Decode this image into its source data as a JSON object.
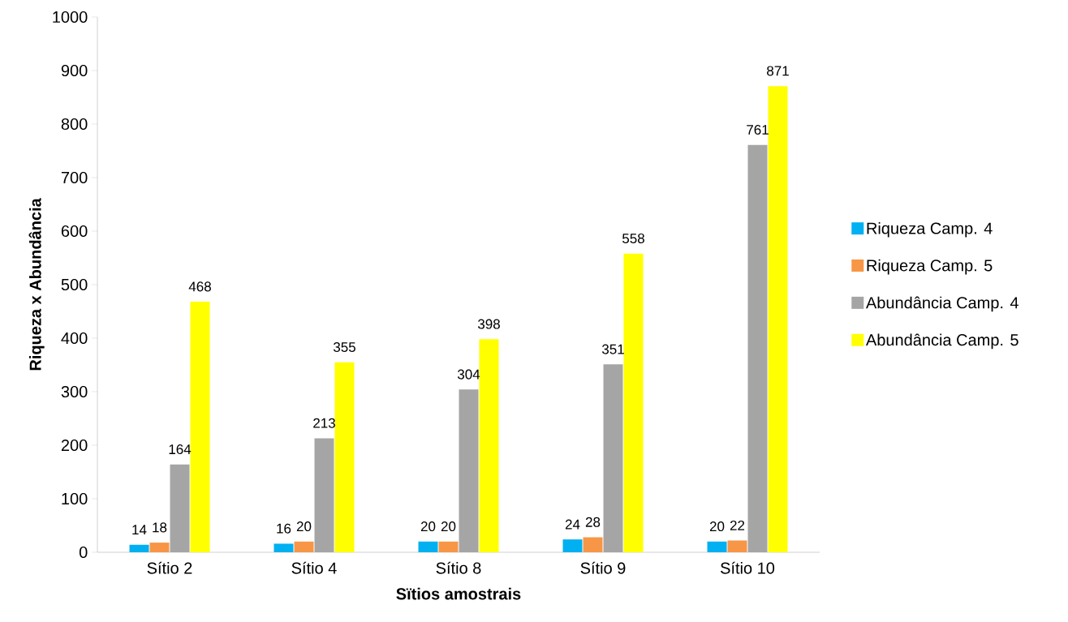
{
  "chart_data": {
    "type": "bar",
    "xlabel": "Sïtios amostrais",
    "ylabel": "Riqueza x Abundância",
    "categories": [
      "Sítio 2",
      "Sítio 4",
      "Sítio 8",
      "Sítio 9",
      "Sítio 10"
    ],
    "series": [
      {
        "name": "Riqueza Camp. 4",
        "color": "#00b0f0",
        "values": [
          14,
          16,
          20,
          24,
          20
        ]
      },
      {
        "name": "Riqueza Camp. 5",
        "color": "#f79646",
        "values": [
          18,
          20,
          20,
          28,
          22
        ]
      },
      {
        "name": "Abundância Camp. 4",
        "color": "#a5a5a5",
        "values": [
          164,
          213,
          304,
          351,
          761
        ]
      },
      {
        "name": "Abundância Camp. 5",
        "color": "#ffff00",
        "values": [
          468,
          355,
          398,
          558,
          871
        ]
      }
    ],
    "ylim": [
      0,
      1000
    ],
    "yticks": [
      0,
      100,
      200,
      300,
      400,
      500,
      600,
      700,
      800,
      900,
      1000
    ],
    "data_labels": true,
    "legend": "right",
    "grid": false
  }
}
